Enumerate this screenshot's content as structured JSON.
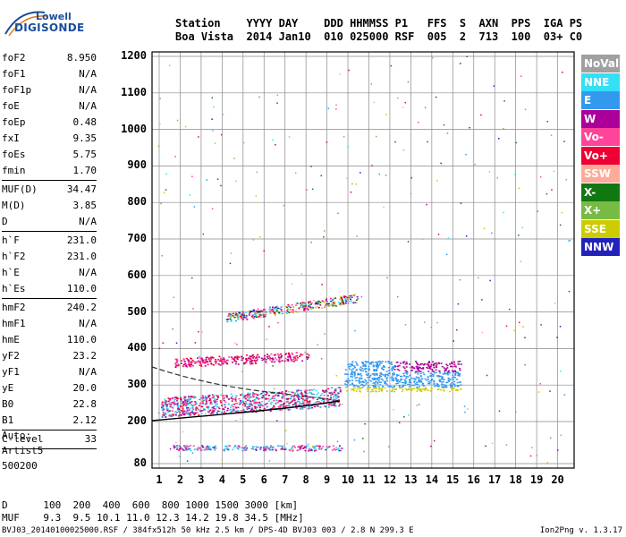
{
  "logo": {
    "top": "Lowell",
    "bottom": "DIGISONDE"
  },
  "header": {
    "line1": "Station    YYYY DAY    DDD HHMMSS P1   FFS  S  AXN  PPS  IGA PS",
    "line2": "Boa Vista  2014 Jan10  010 025000 RSF  005  2  713  100  03+ C0"
  },
  "params": [
    {
      "label": "foF2",
      "value": "8.950"
    },
    {
      "label": "foF1",
      "value": "N/A"
    },
    {
      "label": "foF1p",
      "value": "N/A"
    },
    {
      "label": "foE",
      "value": "N/A"
    },
    {
      "label": "foEp",
      "value": "0.48"
    },
    {
      "label": "fxI",
      "value": "9.35"
    },
    {
      "label": "foEs",
      "value": "5.75"
    },
    {
      "label": "fmin",
      "value": "1.70"
    },
    {
      "sep": true
    },
    {
      "label": "MUF(D)",
      "value": "34.47"
    },
    {
      "label": "M(D)",
      "value": "3.85"
    },
    {
      "label": "D",
      "value": "N/A"
    },
    {
      "sep": true
    },
    {
      "label": "h`F",
      "value": "231.0"
    },
    {
      "label": "h`F2",
      "value": "231.0"
    },
    {
      "label": "h`E",
      "value": "N/A"
    },
    {
      "label": "h`Es",
      "value": "110.0"
    },
    {
      "sep": true
    },
    {
      "label": "hmF2",
      "value": "240.2"
    },
    {
      "label": "hmF1",
      "value": "N/A"
    },
    {
      "label": "hmE",
      "value": "110.0"
    },
    {
      "label": "yF2",
      "value": "23.2"
    },
    {
      "label": "yF1",
      "value": "N/A"
    },
    {
      "label": "yE",
      "value": "20.0"
    },
    {
      "label": "B0",
      "value": "22.8"
    },
    {
      "label": "B1",
      "value": "2.12"
    },
    {
      "sep": true
    },
    {
      "label": "C-level",
      "value": "33"
    },
    {
      "sep": true
    }
  ],
  "auto": {
    "line1": "Auto:",
    "line2": "Artist5",
    "line3": "500200"
  },
  "legend": [
    {
      "label": "NoVal",
      "color": "#a0a0a0"
    },
    {
      "label": "NNE",
      "color": "#33e0f5"
    },
    {
      "label": "E",
      "color": "#3399ee"
    },
    {
      "label": "W",
      "color": "#aa0099"
    },
    {
      "label": "Vo-",
      "color": "#ff4499"
    },
    {
      "label": "Vo+",
      "color": "#ee0033"
    },
    {
      "label": "SSW",
      "color": "#ffaa99"
    },
    {
      "label": "X-",
      "color": "#117711"
    },
    {
      "label": "X+",
      "color": "#77bb44"
    },
    {
      "label": "SSE",
      "color": "#cccc00"
    },
    {
      "label": "NNW",
      "color": "#2222bb"
    }
  ],
  "axes": {
    "y_ticks": [
      "1200",
      "1100",
      "1000",
      "900",
      "800",
      "700",
      "600",
      "500",
      "400",
      "300",
      "200",
      "80"
    ],
    "x_ticks": [
      "1",
      "2",
      "3",
      "4",
      "5",
      "6",
      "7",
      "8",
      "9",
      "10",
      "11",
      "12",
      "13",
      "14",
      "15",
      "16",
      "17",
      "18",
      "19",
      "20"
    ]
  },
  "muf_table": {
    "d_row": "D      100  200  400  600  800 1000 1500 3000 [km]",
    "muf_row": "MUF    9.3  9.5 10.1 11.0 12.3 14.2 19.8 34.5 [MHz]"
  },
  "footer": {
    "left": "BVJ03_20140100025000.RSF / 384fx512h 50 kHz 2.5 km / DPS-4D BVJ03 003 / 2.8 N 299.3 E",
    "right": "Ion2Png v. 1.3.17"
  }
}
